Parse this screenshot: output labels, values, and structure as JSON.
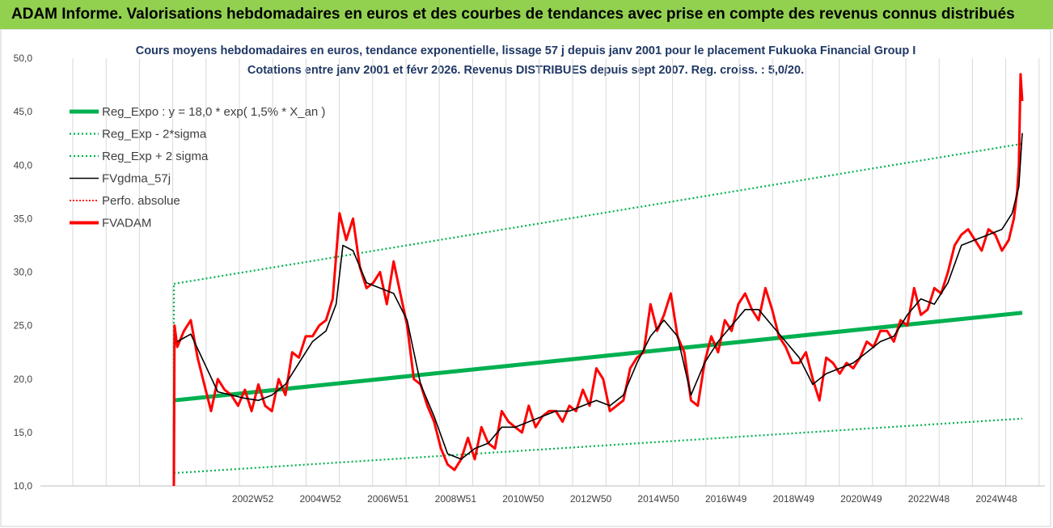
{
  "header": {
    "banner_text": "ADAM Informe. Valorisations hebdomadaires en euros et des courbes de tendances avec prise en compte des revenus connus distribués"
  },
  "colors": {
    "banner_bg": "#92d050",
    "title_text": "#1f3864",
    "reg_expo": "#00b050",
    "reg_sigma": "#00b050",
    "fvgdma": "#000000",
    "perfo": "#ff0000",
    "fvadam": "#ff0000",
    "grid": "#d9d9d9"
  },
  "chart_data": {
    "type": "line",
    "title_line1": "Cours moyens hebdomadaires en euros, tendance exponentielle, lissage 57 j depuis janv 2001 pour le placement Fukuoka Financial Group I",
    "title_line2": "Cotations entre janv 2001 et févr 2026. Revenus DISTRIBUES depuis sept 2007. Reg. croiss. : 5,0/20.",
    "xlabel": "",
    "ylabel": "",
    "x_range": [
      2001.0,
      2026.1
    ],
    "ylim": [
      10,
      50
    ],
    "yticks": [
      "10,0",
      "15,0",
      "20,0",
      "25,0",
      "30,0",
      "35,0",
      "40,0",
      "45,0",
      "50,0"
    ],
    "ytick_values": [
      10,
      15,
      20,
      25,
      30,
      35,
      40,
      45,
      50
    ],
    "xticks": [
      {
        "label": "2002W52",
        "x": 2003.0
      },
      {
        "label": "2004W52",
        "x": 2005.0
      },
      {
        "label": "2006W51",
        "x": 2007.0
      },
      {
        "label": "2008W51",
        "x": 2009.0
      },
      {
        "label": "2010W50",
        "x": 2011.0
      },
      {
        "label": "2012W50",
        "x": 2013.0
      },
      {
        "label": "2014W50",
        "x": 2015.0
      },
      {
        "label": "2016W49",
        "x": 2017.0
      },
      {
        "label": "2018W49",
        "x": 2019.0
      },
      {
        "label": "2020W49",
        "x": 2021.0
      },
      {
        "label": "2022W48",
        "x": 2023.0
      },
      {
        "label": "2024W48",
        "x": 2025.0
      }
    ],
    "grid": "vertical",
    "legend_position": "top-left",
    "legend": [
      {
        "key": "reg_expo",
        "label": "Reg_Expo : y = 18,0 * exp( 1,5% *  X_an )",
        "style": "solid-thick"
      },
      {
        "key": "reg_minus",
        "label": "Reg_Exp - 2*sigma",
        "style": "dotted"
      },
      {
        "key": "reg_plus",
        "label": "Reg_Exp + 2 sigma",
        "style": "dotted"
      },
      {
        "key": "fvgdma",
        "label": "FVgdma_57j",
        "style": "solid"
      },
      {
        "key": "perfo",
        "label": "Perfo. absolue",
        "style": "dotted"
      },
      {
        "key": "fvadam",
        "label": "FVADAM",
        "style": "solid-thick"
      }
    ],
    "series": [
      {
        "key": "reg_expo",
        "name": "Reg_Expo : y = 18,0 * exp( 1,5% *  X_an )",
        "x": [
          2001.0,
          2026.1
        ],
        "values": [
          18.0,
          26.2
        ]
      },
      {
        "key": "reg_minus",
        "name": "Reg_Exp - 2*sigma",
        "x": [
          2001.0,
          2026.1
        ],
        "values": [
          11.2,
          16.3
        ]
      },
      {
        "key": "reg_plus",
        "name": "Reg_Exp + 2 sigma",
        "x": [
          2001.0,
          2026.1
        ],
        "values": [
          28.9,
          42.0
        ]
      },
      {
        "key": "fvadam",
        "name": "FVADAM",
        "x": [
          2001.0,
          2001.02,
          2001.1,
          2001.3,
          2001.5,
          2001.7,
          2001.9,
          2002.1,
          2002.3,
          2002.5,
          2002.7,
          2002.9,
          2003.1,
          2003.3,
          2003.5,
          2003.7,
          2003.9,
          2004.1,
          2004.3,
          2004.5,
          2004.7,
          2004.9,
          2005.1,
          2005.3,
          2005.5,
          2005.7,
          2005.9,
          2006.1,
          2006.3,
          2006.5,
          2006.7,
          2006.9,
          2007.1,
          2007.3,
          2007.5,
          2007.7,
          2007.9,
          2008.1,
          2008.3,
          2008.5,
          2008.7,
          2008.9,
          2009.1,
          2009.3,
          2009.5,
          2009.7,
          2009.9,
          2010.1,
          2010.3,
          2010.5,
          2010.7,
          2010.9,
          2011.1,
          2011.3,
          2011.5,
          2011.7,
          2011.9,
          2012.1,
          2012.3,
          2012.5,
          2012.7,
          2012.9,
          2013.1,
          2013.3,
          2013.5,
          2013.7,
          2013.9,
          2014.1,
          2014.3,
          2014.5,
          2014.7,
          2014.9,
          2015.1,
          2015.3,
          2015.5,
          2015.7,
          2015.9,
          2016.1,
          2016.3,
          2016.5,
          2016.7,
          2016.9,
          2017.1,
          2017.3,
          2017.5,
          2017.7,
          2017.9,
          2018.1,
          2018.3,
          2018.5,
          2018.7,
          2018.9,
          2019.1,
          2019.3,
          2019.5,
          2019.7,
          2019.9,
          2020.1,
          2020.3,
          2020.5,
          2020.7,
          2020.9,
          2021.1,
          2021.3,
          2021.5,
          2021.7,
          2021.9,
          2022.1,
          2022.3,
          2022.5,
          2022.7,
          2022.9,
          2023.1,
          2023.3,
          2023.5,
          2023.7,
          2023.9,
          2024.1,
          2024.3,
          2024.5,
          2024.7,
          2024.9,
          2025.1,
          2025.3,
          2025.5,
          2025.7,
          2025.85,
          2025.95,
          2026.0,
          2026.05,
          2026.1
        ],
        "values": [
          10.0,
          25.0,
          23.0,
          24.5,
          25.5,
          22.0,
          19.5,
          17.0,
          20.0,
          19.0,
          18.5,
          17.5,
          19.0,
          17.0,
          19.5,
          17.5,
          17.0,
          20.0,
          18.5,
          22.5,
          22.0,
          24.0,
          24.0,
          25.0,
          25.5,
          27.5,
          35.5,
          33.0,
          35.0,
          30.5,
          28.5,
          29.0,
          30.0,
          27.0,
          31.0,
          28.0,
          25.0,
          20.0,
          19.5,
          17.5,
          16.0,
          13.5,
          12.0,
          11.5,
          12.5,
          14.5,
          12.5,
          15.5,
          14.0,
          13.5,
          17.0,
          16.0,
          15.5,
          15.0,
          17.5,
          15.5,
          16.5,
          17.0,
          17.0,
          16.0,
          17.5,
          17.0,
          19.0,
          17.5,
          21.0,
          20.0,
          17.0,
          17.5,
          18.0,
          21.0,
          22.0,
          22.5,
          27.0,
          24.5,
          26.0,
          28.0,
          24.0,
          22.5,
          18.0,
          17.5,
          21.5,
          24.0,
          22.5,
          25.5,
          24.5,
          27.0,
          28.0,
          26.5,
          25.5,
          28.5,
          26.5,
          24.0,
          23.0,
          21.5,
          21.5,
          22.5,
          20.0,
          18.0,
          22.0,
          21.5,
          20.5,
          21.5,
          21.0,
          22.0,
          23.5,
          23.0,
          24.5,
          24.5,
          23.5,
          25.5,
          25.0,
          28.5,
          26.0,
          26.5,
          28.5,
          28.0,
          30.0,
          32.5,
          33.5,
          34.0,
          33.0,
          32.0,
          34.0,
          33.5,
          32.0,
          33.0,
          35.0,
          37.5,
          40.0,
          48.5,
          46.0
        ]
      },
      {
        "key": "fvgdma",
        "name": "FVgdma_57j",
        "x": [
          2001.1,
          2001.5,
          2001.9,
          2002.3,
          2002.7,
          2003.1,
          2003.5,
          2003.9,
          2004.3,
          2004.7,
          2005.1,
          2005.5,
          2005.8,
          2006.0,
          2006.3,
          2006.7,
          2007.1,
          2007.5,
          2007.9,
          2008.3,
          2008.7,
          2009.1,
          2009.5,
          2009.9,
          2010.3,
          2010.7,
          2011.1,
          2011.5,
          2011.9,
          2012.3,
          2012.7,
          2013.1,
          2013.5,
          2013.9,
          2014.3,
          2014.7,
          2015.1,
          2015.5,
          2015.9,
          2016.3,
          2016.7,
          2017.1,
          2017.5,
          2017.9,
          2018.3,
          2018.7,
          2019.1,
          2019.5,
          2019.9,
          2020.3,
          2020.7,
          2021.1,
          2021.5,
          2021.9,
          2022.3,
          2022.7,
          2023.1,
          2023.5,
          2023.9,
          2024.3,
          2024.7,
          2025.1,
          2025.5,
          2025.8,
          2026.0,
          2026.1
        ],
        "values": [
          23.5,
          24.2,
          21.5,
          18.8,
          18.5,
          18.2,
          18.0,
          18.5,
          19.5,
          21.5,
          23.5,
          24.5,
          27.0,
          32.5,
          32.0,
          29.0,
          28.5,
          28.0,
          25.5,
          19.5,
          16.5,
          13.0,
          12.5,
          13.5,
          14.0,
          15.5,
          15.5,
          16.0,
          16.5,
          17.0,
          17.0,
          17.5,
          18.0,
          17.5,
          18.5,
          21.5,
          24.0,
          25.5,
          24.0,
          18.5,
          21.5,
          23.5,
          25.0,
          26.5,
          26.5,
          25.0,
          23.5,
          22.0,
          19.5,
          20.5,
          21.0,
          21.5,
          22.5,
          23.5,
          24.0,
          26.0,
          27.5,
          27.0,
          29.0,
          32.5,
          33.0,
          33.5,
          34.0,
          35.5,
          38.0,
          43.0
        ]
      }
    ]
  }
}
